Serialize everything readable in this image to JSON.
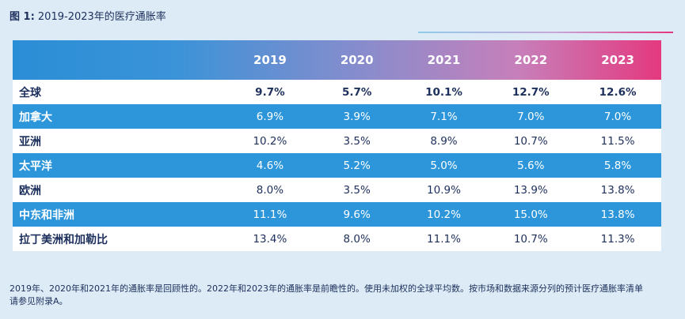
{
  "title": {
    "prefix": "图 1:",
    "text": " 2019-2023年的医疗通胀率"
  },
  "table": {
    "columns": [
      "2019",
      "2020",
      "2021",
      "2022",
      "2023"
    ],
    "rows": [
      {
        "label": "全球",
        "values": [
          "9.7%",
          "5.7%",
          "10.1%",
          "12.7%",
          "12.6%"
        ]
      },
      {
        "label": "加拿大",
        "values": [
          "6.9%",
          "3.9%",
          "7.1%",
          "7.0%",
          "7.0%"
        ]
      },
      {
        "label": "亚洲",
        "values": [
          "10.2%",
          "3.5%",
          "8.9%",
          "10.7%",
          "11.5%"
        ]
      },
      {
        "label": "太平洋",
        "values": [
          "4.6%",
          "5.2%",
          "5.0%",
          "5.6%",
          "5.8%"
        ]
      },
      {
        "label": "欧洲",
        "values": [
          "8.0%",
          "3.5%",
          "10.9%",
          "13.9%",
          "13.8%"
        ]
      },
      {
        "label": "中东和非洲",
        "values": [
          "11.1%",
          "9.6%",
          "10.2%",
          "15.0%",
          "13.8%"
        ]
      },
      {
        "label": "拉丁美洲和加勒比",
        "values": [
          "13.4%",
          "8.0%",
          "11.1%",
          "10.7%",
          "11.3%"
        ]
      }
    ]
  },
  "footnote": {
    "line1": "2019年、2020年和2021年的通胀率是回顾性的。2022年和2023年的通胀率是前瞻性的。使用未加权的全球平均数。按市场和数据来源分列的预计医疗通胀率清单",
    "line2": "请参见附录A。"
  },
  "colors": {
    "background": "#dcebf5",
    "header_start": "#2a8ed6",
    "header_end": "#e4397f",
    "alt_row": "#2d96db",
    "text_dark": "#1d2f5c"
  }
}
